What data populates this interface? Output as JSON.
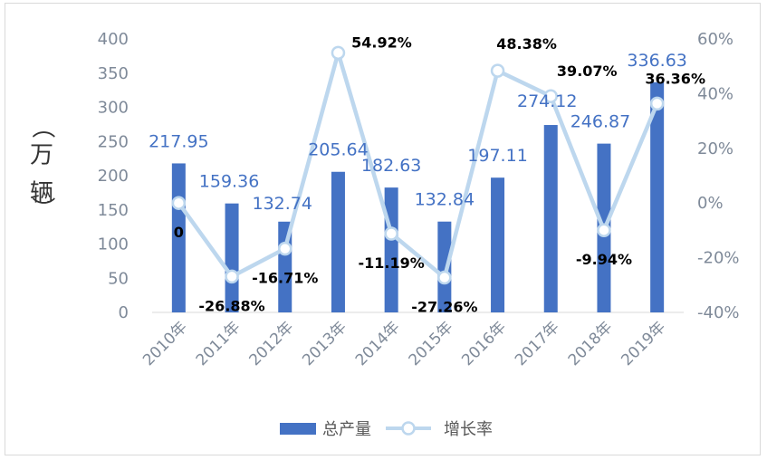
{
  "chart_data": {
    "type": "bar",
    "categories": [
      "2010年",
      "2011年",
      "2012年",
      "2013年",
      "2014年",
      "2015年",
      "2016年",
      "2017年",
      "2018年",
      "2019年"
    ],
    "series": [
      {
        "name": "总产量",
        "type": "bar",
        "axis": "left",
        "values": [
          217.95,
          159.36,
          132.74,
          205.64,
          182.63,
          132.84,
          197.11,
          274.12,
          246.87,
          336.63
        ],
        "labels": [
          "217.95",
          "159.36",
          "132.74",
          "205.64",
          "182.63",
          "132.84",
          "197.11",
          "274.12",
          "246.87",
          "336.63"
        ]
      },
      {
        "name": "增长率",
        "type": "line",
        "axis": "right",
        "values": [
          0,
          -26.88,
          -16.71,
          54.92,
          -11.19,
          -27.26,
          48.38,
          39.07,
          -9.94,
          36.36
        ],
        "labels": [
          "0",
          "-26.88%",
          "-16.71%",
          "54.92%",
          "-11.19%",
          "-27.26%",
          "48.38%",
          "39.07%",
          "-9.94%",
          "36.36%"
        ]
      }
    ],
    "ylabel": "（万辆）",
    "ylim": [
      0,
      400
    ],
    "y2lim": [
      -40,
      60
    ],
    "yticks": [
      "0",
      "50",
      "100",
      "150",
      "200",
      "250",
      "300",
      "350",
      "400"
    ],
    "y2ticks": [
      "-40%",
      "-20%",
      "0%",
      "20%",
      "40%",
      "60%"
    ],
    "legend_position": "bottom",
    "grid": false,
    "colors": {
      "bar": "#4472c4",
      "line": "#bdd7ee",
      "bar_label": "#4472c4",
      "rate_label": "#000000",
      "axis_text": "#7f8a99"
    }
  }
}
